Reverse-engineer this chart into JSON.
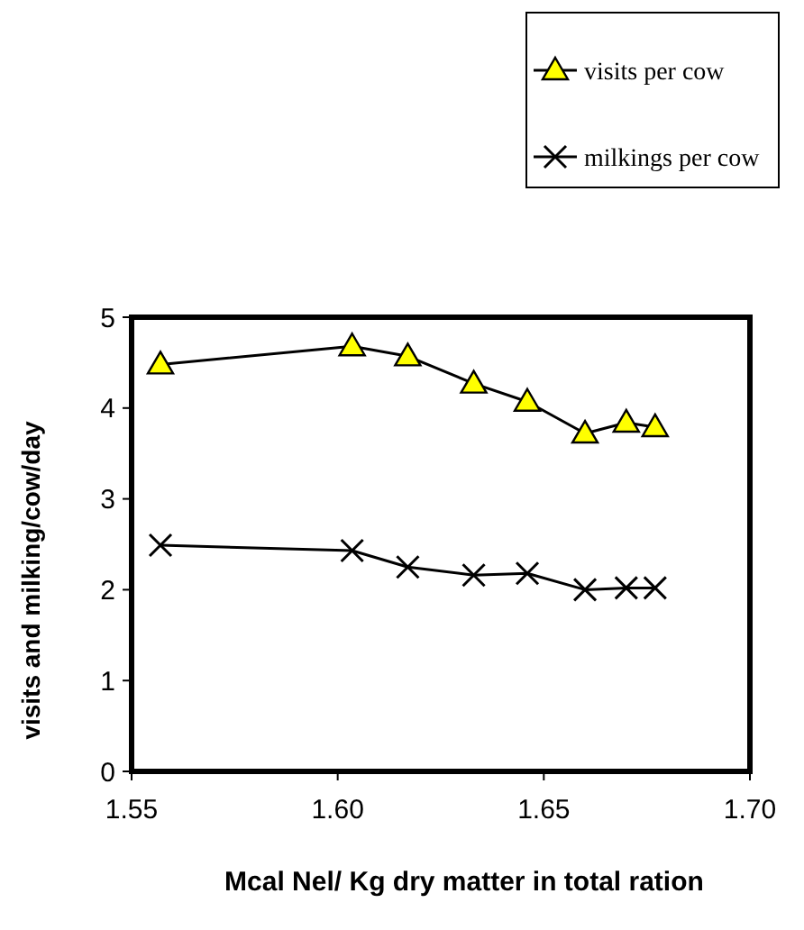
{
  "chart_data": {
    "type": "line",
    "xlabel": "Mcal Nel/ Kg dry matter in total ration",
    "ylabel": "visits and milking/cow/day",
    "xlim": [
      1.55,
      1.7
    ],
    "xticks": [
      {
        "value": 1.55,
        "label": "1.55"
      },
      {
        "value": 1.6,
        "label": "1.60"
      },
      {
        "value": 1.65,
        "label": "1.65"
      },
      {
        "value": 1.7,
        "label": "1.70"
      }
    ],
    "ylim": [
      0,
      5
    ],
    "yticks": [
      0,
      1,
      2,
      3,
      4,
      5
    ],
    "grid": false,
    "legend": "top right",
    "line_style": "solid",
    "x": [
      1.557,
      1.6035,
      1.617,
      1.633,
      1.646,
      1.66,
      1.67,
      1.677
    ],
    "series": [
      {
        "name": "visits per cow",
        "color": "#ffff00",
        "marker": "triangle",
        "values": [
          4.48,
          4.68,
          4.57,
          4.27,
          4.07,
          3.72,
          3.84,
          3.79
        ]
      },
      {
        "name": "milkings per cow",
        "color": "#000000",
        "marker": "cross",
        "values": [
          2.49,
          2.43,
          2.25,
          2.16,
          2.18,
          2.0,
          2.02,
          2.02
        ]
      }
    ]
  }
}
